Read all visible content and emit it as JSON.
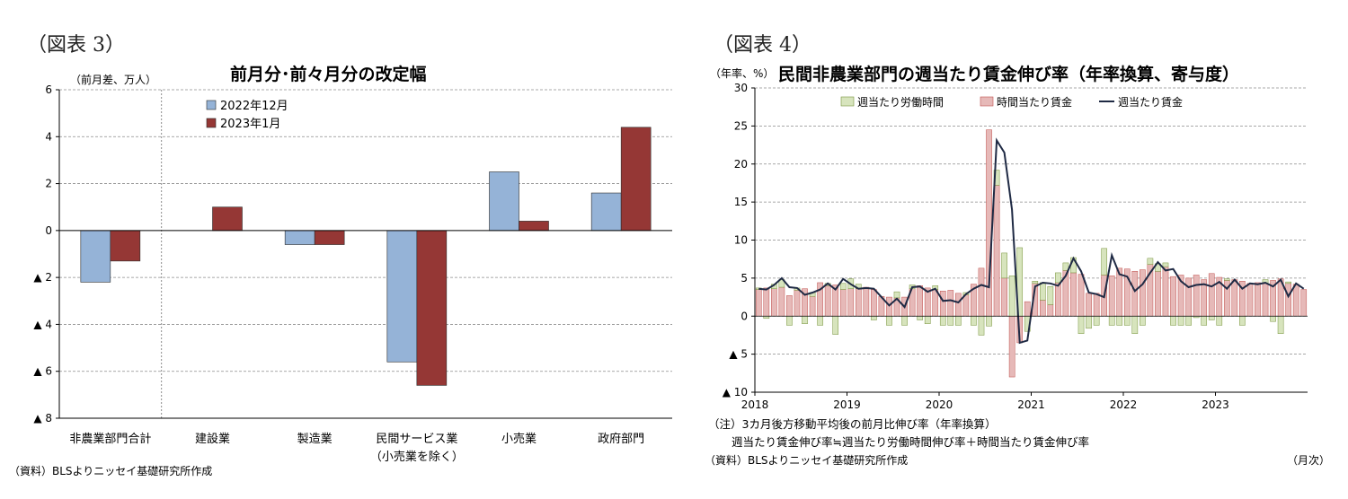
{
  "left": {
    "fig_label": "（図表 3）",
    "unit": "（前月差、万人）",
    "source": "（資料）BLSよりニッセイ基礎研究所作成"
  },
  "right": {
    "fig_label": "（図表 4）",
    "unit": "（年率、%）",
    "note1": "（注）3カ月後方移動平均後の前月比伸び率（年率換算）",
    "note2": "週当たり賃金伸び率≒週当たり労働時間伸び率＋時間当たり賃金伸び率",
    "source": "（資料）BLSよりニッセイ基礎研究所作成",
    "x_unit": "（月次）"
  },
  "chart_data": [
    {
      "type": "bar",
      "title": "前月分･前々月分の改定幅",
      "categories": [
        "非農業部門合計",
        "建設業",
        "製造業",
        "民間サービス業\n（小売業を除く）",
        "小売業",
        "政府部門"
      ],
      "series": [
        {
          "name": "2022年12月",
          "color": "#95B3D7",
          "values": [
            -2.2,
            0,
            -0.6,
            -5.6,
            2.5,
            1.6
          ]
        },
        {
          "name": "2023年1月",
          "color": "#953735",
          "values": [
            -1.3,
            1.0,
            -0.6,
            -6.6,
            0.4,
            4.4
          ]
        }
      ],
      "ylim": [
        -8,
        6
      ],
      "yticks": [
        6,
        4,
        2,
        0,
        -2,
        -4,
        -6,
        -8
      ],
      "ytick_labels": [
        "6",
        "4",
        "2",
        "0",
        "▲ 2",
        "▲ 4",
        "▲ 6",
        "▲ 8"
      ],
      "grid": true,
      "legend": "top-left"
    },
    {
      "type": "bar+line",
      "title": "民間非農業部門の週当たり賃金伸び率（年率換算、寄与度）",
      "x_start": "2018-01",
      "x_tick_labels": [
        "2018",
        "2019",
        "2020",
        "2021",
        "2022",
        "2023"
      ],
      "ylim": [
        -10,
        30
      ],
      "yticks": [
        30,
        25,
        20,
        15,
        10,
        5,
        0,
        -5,
        -10
      ],
      "ytick_labels": [
        "30",
        "25",
        "20",
        "15",
        "10",
        "5",
        "0",
        "▲ 5",
        "▲ 10"
      ],
      "legend": "top-center",
      "series": [
        {
          "name": "週当たり労働時間",
          "kind": "bar",
          "color": "#D7E4BD",
          "values": [
            0.2,
            -0.3,
            0.6,
            1.0,
            -1.2,
            0.3,
            -1.0,
            0.5,
            -1.2,
            0.3,
            -2.4,
            0.8,
            1.3,
            0.6,
            0.0,
            -0.5,
            0.0,
            -1.2,
            0.8,
            -1.2,
            0.5,
            -0.5,
            -1.0,
            0.5,
            -1.2,
            -1.2,
            -1.2,
            0.3,
            -1.2,
            -2.5,
            -1.3,
            2.0,
            3.3,
            5.3,
            9.0,
            -2.0,
            0.3,
            2.3,
            2.4,
            1.3,
            1.0,
            2.0,
            -2.3,
            -1.6,
            -1.2,
            3.5,
            -1.2,
            -1.2,
            -1.2,
            -2.3,
            -1.2,
            0.8,
            1.0,
            0.5,
            -1.2,
            -1.2,
            -1.2,
            -0.2,
            -1.2,
            -0.5,
            -1.2,
            0.2,
            0.0,
            -1.2,
            0.0,
            0.0,
            0.5,
            -0.7,
            -2.3,
            0.2,
            0.0,
            0.0
          ]
        },
        {
          "name": "時間当たり賃金",
          "kind": "bar",
          "color": "#E6B9B8",
          "values": [
            3.5,
            3.7,
            3.6,
            3.8,
            2.7,
            3.4,
            3.6,
            2.6,
            4.4,
            4.0,
            4.1,
            3.5,
            3.6,
            3.6,
            3.8,
            3.5,
            2.6,
            2.5,
            2.4,
            2.5,
            3.6,
            4.0,
            3.7,
            3.5,
            3.3,
            3.4,
            3.0,
            2.8,
            4.2,
            6.3,
            24.5,
            17.2,
            5.0,
            -8.0,
            -3.5,
            1.9,
            4.3,
            2.1,
            1.5,
            4.4,
            6.0,
            5.7,
            5.5,
            3.0,
            3.0,
            5.4,
            5.3,
            6.3,
            6.2,
            5.9,
            6.1,
            6.8,
            5.9,
            6.5,
            5.2,
            5.4,
            5.0,
            5.4,
            4.8,
            5.6,
            5.1,
            4.7,
            4.8,
            4.6,
            4.3,
            4.4,
            4.3,
            4.7,
            4.9,
            4.3,
            4.2,
            3.5
          ]
        },
        {
          "name": "週当たり賃金",
          "kind": "line",
          "color": "#1F2A44",
          "values": [
            3.6,
            3.5,
            4.1,
            5.0,
            3.8,
            3.7,
            2.8,
            3.1,
            3.5,
            4.3,
            3.5,
            4.9,
            4.2,
            3.6,
            3.7,
            3.6,
            2.5,
            1.4,
            2.3,
            1.2,
            3.8,
            3.9,
            3.2,
            3.6,
            2.0,
            2.1,
            1.8,
            2.9,
            3.6,
            4.1,
            3.8,
            23.1,
            21.5,
            14.0,
            -3.5,
            -3.2,
            3.9,
            4.4,
            4.3,
            4.0,
            5.3,
            7.6,
            5.9,
            3.1,
            2.9,
            2.5,
            8.0,
            5.5,
            5.2,
            3.3,
            4.2,
            5.7,
            7.1,
            6.0,
            6.2,
            4.6,
            3.8,
            4.1,
            4.2,
            3.9,
            4.5,
            3.6,
            4.8,
            3.6,
            4.3,
            4.2,
            4.4,
            3.9,
            4.8,
            2.6,
            4.3,
            3.6
          ]
        }
      ]
    }
  ]
}
